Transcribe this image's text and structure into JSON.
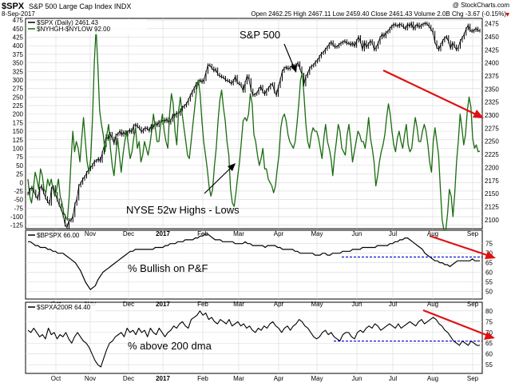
{
  "header": {
    "symbol": "$SPX",
    "name": "S&P 500 Large Cap Index INDX",
    "date": "8-Sep-2017",
    "brand": "@ StockCharts.com",
    "quote": "Open 2462.25  High 2467.11  Low 2459.40  Close 2461.43  Volume 2.0B  Chg -3.67 (-0.15%)",
    "quote_neg_marker": "▼"
  },
  "colors": {
    "price": "#000000",
    "highs_lows": "#1a6b10",
    "bullish_pf": "#000000",
    "above_200": "#000000",
    "trend_arrow": "#e01010",
    "support_line": "#0000cc",
    "grid": "#d8d8d8"
  },
  "chart_data": [
    {
      "type": "line",
      "panel": "top",
      "legend": [
        {
          "label": "$SPX (Daily) 2461.43",
          "marker": "black-line"
        },
        {
          "label": "$NYHGH-$NYLOW 92.00",
          "marker": "green-line"
        }
      ],
      "x_ticks": [
        "Oct",
        "Nov",
        "Dec",
        "2017",
        "Feb",
        "Mar",
        "Apr",
        "May",
        "Jun",
        "Jul",
        "Aug",
        "Sep"
      ],
      "left_axis": {
        "ticks": [
          475,
          450,
          425,
          400,
          375,
          350,
          325,
          300,
          275,
          250,
          225,
          200,
          175,
          150,
          125,
          100,
          75,
          50,
          25,
          0,
          -25,
          -50,
          -75,
          -100,
          -125
        ],
        "ylim": [
          -135,
          480
        ]
      },
      "right_axis": {
        "ticks": [
          2475,
          2450,
          2425,
          2400,
          2375,
          2350,
          2325,
          2300,
          2275,
          2250,
          2225,
          2200,
          2175,
          2150,
          2125,
          2100
        ],
        "ylim": [
          2083,
          2485
        ]
      },
      "series": [
        {
          "name": "$SPX (Daily) 2461.43",
          "axis": "right",
          "values": [
            2150,
            2158,
            2162,
            2155,
            2145,
            2140,
            2160,
            2165,
            2152,
            2142,
            2135,
            2130,
            2160,
            2163,
            2150,
            2138,
            2128,
            2120,
            2108,
            2090,
            2085,
            2100,
            2098,
            2108,
            2130,
            2140,
            2165,
            2170,
            2178,
            2182,
            2190,
            2196,
            2200,
            2205,
            2212,
            2213,
            2217,
            2212,
            2228,
            2242,
            2260,
            2254,
            2265,
            2256,
            2246,
            2262,
            2264,
            2270,
            2262,
            2268,
            2262,
            2268,
            2272,
            2267,
            2280,
            2282,
            2278,
            2275,
            2268,
            2272,
            2276,
            2274,
            2270,
            2280,
            2276,
            2285,
            2280,
            2288,
            2285,
            2292,
            2288,
            2293,
            2285,
            2290,
            2300,
            2298,
            2305,
            2302,
            2310,
            2315,
            2318,
            2322,
            2329,
            2338,
            2345,
            2352,
            2360,
            2365,
            2367,
            2363,
            2368,
            2382,
            2396,
            2395,
            2390,
            2385,
            2388,
            2378,
            2375,
            2373,
            2372,
            2367,
            2366,
            2364,
            2360,
            2366,
            2374,
            2362,
            2360,
            2356,
            2346,
            2362,
            2375,
            2368,
            2348,
            2338,
            2340,
            2342,
            2350,
            2355,
            2345,
            2340,
            2348,
            2352,
            2358,
            2360,
            2345,
            2338,
            2355,
            2368,
            2384,
            2390,
            2392,
            2388,
            2391,
            2395,
            2390,
            2396,
            2400,
            2390,
            2378,
            2358,
            2374,
            2380,
            2390,
            2394,
            2396,
            2402,
            2405,
            2412,
            2418,
            2420,
            2426,
            2430,
            2436,
            2440,
            2434,
            2430,
            2431,
            2435,
            2438,
            2440,
            2442,
            2437,
            2438,
            2434,
            2438,
            2432,
            2442,
            2450,
            2440,
            2425,
            2440,
            2430,
            2436,
            2442,
            2438,
            2425,
            2430,
            2438,
            2448,
            2455,
            2450,
            2458,
            2460,
            2466,
            2470,
            2474,
            2472,
            2470,
            2474,
            2472,
            2468,
            2465,
            2474,
            2470,
            2476,
            2465,
            2470,
            2474,
            2468,
            2472,
            2474,
            2476,
            2474,
            2470,
            2464,
            2458,
            2440,
            2430,
            2425,
            2435,
            2442,
            2448,
            2450,
            2440,
            2428,
            2438,
            2432,
            2425,
            2430,
            2442,
            2448,
            2455,
            2465,
            2472,
            2462,
            2460,
            2462,
            2466,
            2462,
            2461
          ]
        },
        {
          "name": "$NYHGH-$NYLOW 92.00",
          "axis": "left",
          "values": [
            10,
            -40,
            -60,
            -20,
            30,
            10,
            -20,
            40,
            20,
            -20,
            -30,
            10,
            -10,
            10,
            -20,
            -40,
            -20,
            10,
            -40,
            -60,
            -90,
            -100,
            -110,
            -40,
            60,
            150,
            90,
            120,
            100,
            60,
            130,
            190,
            120,
            60,
            30,
            70,
            190,
            350,
            450,
            340,
            210,
            170,
            140,
            90,
            140,
            170,
            100,
            50,
            20,
            80,
            130,
            80,
            30,
            80,
            120,
            150,
            110,
            70,
            90,
            130,
            160,
            100,
            120,
            60,
            80,
            120,
            100,
            80,
            110,
            150,
            200,
            160,
            120,
            120,
            170,
            200,
            150,
            120,
            100,
            200,
            260,
            230,
            150,
            110,
            210,
            250,
            200,
            160,
            120,
            80,
            70,
            120,
            170,
            220,
            270,
            300,
            260,
            180,
            120,
            80,
            40,
            -10,
            -40,
            -20,
            50,
            100,
            180,
            240,
            270,
            220,
            180,
            120,
            80,
            -20,
            -60,
            -70,
            -30,
            20,
            60,
            120,
            180,
            190,
            180,
            200,
            260,
            230,
            140,
            120,
            80,
            50,
            70,
            100,
            40,
            40,
            10,
            0,
            -10,
            -30,
            -10,
            40,
            80,
            160,
            190,
            200,
            180,
            140,
            120,
            110,
            100,
            120,
            170,
            230,
            300,
            320,
            250,
            170,
            120,
            100,
            140,
            160,
            150,
            150,
            130,
            100,
            70,
            130,
            170,
            120,
            100,
            70,
            20,
            80,
            120,
            170,
            150,
            100,
            90,
            80,
            140,
            170,
            120,
            60,
            90,
            120,
            150,
            140,
            120,
            120,
            100,
            140,
            190,
            130,
            100,
            60,
            -10,
            20,
            60,
            90,
            110,
            140,
            190,
            230,
            200,
            150,
            110,
            90,
            130,
            150,
            120,
            100,
            140,
            170,
            110,
            90,
            100,
            150,
            190,
            160,
            120,
            120,
            150,
            170,
            150,
            110,
            60,
            30,
            120,
            160,
            120,
            80,
            -20,
            -110,
            -140,
            -140,
            -90,
            -20,
            -40,
            -100,
            -30,
            60,
            120,
            200,
            160,
            110,
            140,
            210,
            250,
            220,
            130,
            100,
            110,
            90,
            92
          ]
        }
      ],
      "annotations": [
        {
          "text": "S&P 500"
        },
        {
          "text": "NYSE 52w Highs - Lows"
        }
      ]
    },
    {
      "type": "line",
      "panel": "middle",
      "legend": [
        {
          "label": "$BPSPX 66.00",
          "marker": "black-line"
        }
      ],
      "x_ticks": [
        "Oct",
        "Nov",
        "Dec",
        "2017",
        "Feb",
        "Mar",
        "Apr",
        "May",
        "Jun",
        "Jul",
        "Aug",
        "Sep"
      ],
      "y_ticks": [
        75,
        70,
        65,
        60,
        55,
        50
      ],
      "ylim": [
        46,
        82
      ],
      "support_level": 68,
      "series": [
        {
          "name": "$BPSPX 66.00",
          "values": [
            76,
            76,
            75,
            74,
            74,
            73,
            73,
            73,
            72,
            72,
            71,
            71,
            70,
            70,
            70,
            69,
            68,
            67,
            66,
            65,
            63,
            61,
            58,
            55,
            53,
            51,
            52,
            53,
            56,
            58,
            60,
            61,
            62,
            63,
            64,
            65,
            66,
            67,
            68,
            69,
            70,
            71,
            71,
            72,
            72,
            72,
            72,
            72,
            72,
            72,
            72,
            73,
            73,
            73,
            73,
            74,
            74,
            75,
            75,
            75,
            76,
            76,
            76,
            77,
            77,
            77,
            77,
            78,
            78,
            79,
            79,
            80,
            80,
            79,
            78,
            77,
            77,
            77,
            76,
            76,
            76,
            76,
            76,
            75,
            75,
            75,
            75,
            76,
            75,
            75,
            74,
            74,
            74,
            74,
            74,
            73,
            74,
            74,
            74,
            74,
            73,
            73,
            72,
            72,
            72,
            72,
            72,
            71,
            71,
            70,
            70,
            70,
            70,
            70,
            70,
            69,
            69,
            69,
            70,
            70,
            69,
            69,
            70,
            70,
            70,
            70,
            71,
            71,
            71,
            71,
            72,
            72,
            72,
            72,
            73,
            73,
            73,
            73,
            73,
            73,
            74,
            74,
            74,
            74,
            74,
            75,
            75,
            76,
            76,
            77,
            77,
            78,
            78,
            77,
            76,
            75,
            74,
            73,
            72,
            70,
            69,
            68,
            67,
            66,
            66,
            65,
            65,
            64,
            64,
            63,
            64,
            65,
            66,
            66,
            66,
            66,
            66,
            66,
            67,
            66,
            66,
            66
          ]
        }
      ],
      "annotations": [
        {
          "text": "% Bullish on P&F"
        }
      ]
    },
    {
      "type": "line",
      "panel": "bottom",
      "legend": [
        {
          "label": "$SPXA200R 64.40",
          "marker": "black-line"
        }
      ],
      "x_ticks": [
        "Oct",
        "Nov",
        "Dec",
        "2017",
        "Feb",
        "Mar",
        "Apr",
        "May",
        "Jun",
        "Jul",
        "Aug",
        "Sep"
      ],
      "y_ticks": [
        80,
        75,
        70,
        65,
        60,
        55
      ],
      "ylim": [
        51,
        84
      ],
      "support_level": 66,
      "series": [
        {
          "name": "$SPXA200R 64.40",
          "values": [
            71,
            70,
            72,
            70,
            68,
            69,
            67,
            72,
            69,
            70,
            67,
            69,
            68,
            70,
            67,
            65,
            68,
            70,
            68,
            66,
            65,
            63,
            60,
            57,
            55,
            54,
            58,
            62,
            65,
            66,
            68,
            69,
            70,
            68,
            72,
            70,
            71,
            69,
            72,
            70,
            71,
            68,
            72,
            70,
            69,
            72,
            70,
            68,
            70,
            71,
            73,
            72,
            74,
            75,
            73,
            72,
            76,
            77,
            78,
            80,
            78,
            79,
            76,
            77,
            75,
            74,
            76,
            75,
            74,
            76,
            73,
            74,
            75,
            73,
            74,
            72,
            73,
            71,
            70,
            72,
            71,
            73,
            72,
            74,
            75,
            73,
            72,
            70,
            72,
            73,
            71,
            73,
            74,
            76,
            75,
            73,
            72,
            70,
            68,
            67,
            68,
            70,
            71,
            69,
            70,
            68,
            67,
            66,
            69,
            70,
            70,
            68,
            67,
            70,
            71,
            70,
            72,
            73,
            72,
            74,
            73,
            71,
            72,
            73,
            74,
            73,
            72,
            74,
            72,
            73,
            74,
            75,
            74,
            73,
            75,
            76,
            74,
            75,
            76,
            77,
            76,
            74,
            73,
            71,
            70,
            68,
            66,
            65,
            64,
            66,
            65,
            64,
            66,
            65,
            64,
            64
          ]
        }
      ],
      "annotations": [
        {
          "text": "% above 200 dma"
        }
      ]
    }
  ]
}
